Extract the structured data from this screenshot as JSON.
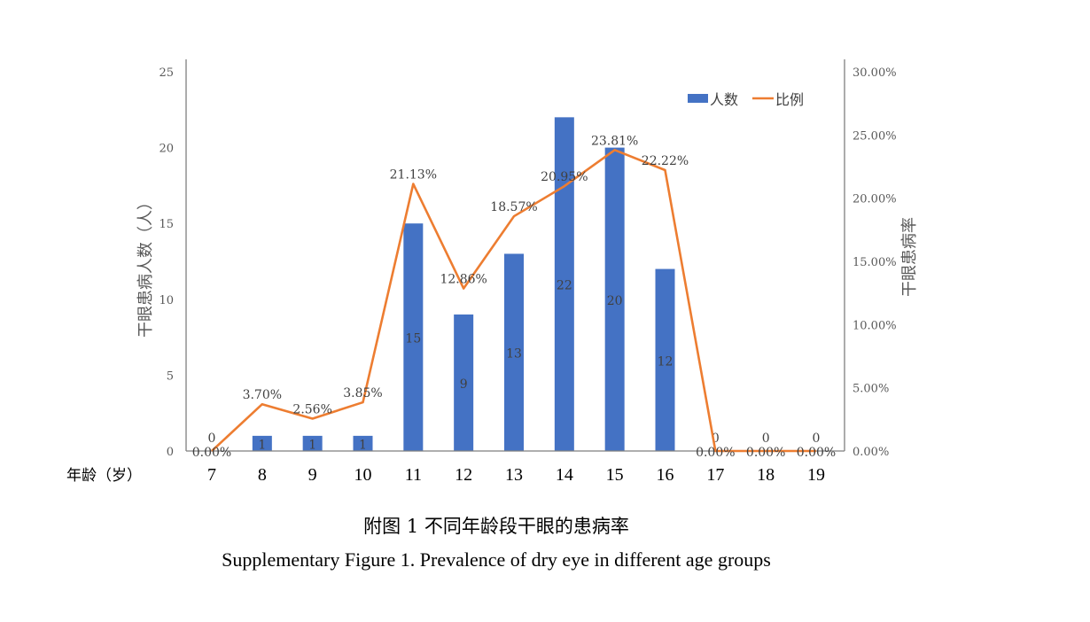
{
  "chart_data": {
    "type": "bar+line",
    "categories": [
      "7",
      "8",
      "9",
      "10",
      "11",
      "12",
      "13",
      "14",
      "15",
      "16",
      "17",
      "18",
      "19"
    ],
    "xlabel": "年龄（岁）",
    "ylabel": "干眼患病人数（人）",
    "y2label": "干眼患病率",
    "ylim": [
      0,
      25
    ],
    "y2lim": [
      0,
      30
    ],
    "yticks": [
      "0",
      "5",
      "10",
      "15",
      "20",
      "25"
    ],
    "y2ticks": [
      "0.00%",
      "5.00%",
      "10.00%",
      "15.00%",
      "20.00%",
      "25.00%",
      "30.00%"
    ],
    "grid": false,
    "legend": "top-right",
    "series": [
      {
        "name": "人数",
        "type": "bar",
        "color": "#4472C4",
        "axis": "left",
        "values": [
          0,
          1,
          1,
          1,
          15,
          9,
          13,
          22,
          20,
          12,
          0,
          0,
          0
        ],
        "labels": [
          "0",
          "1",
          "1",
          "1",
          "15",
          "9",
          "13",
          "22",
          "20",
          "12",
          "0",
          "0",
          "0"
        ]
      },
      {
        "name": "比例",
        "type": "line",
        "color": "#ED7D31",
        "axis": "right",
        "values": [
          0,
          3.7,
          2.56,
          3.85,
          21.13,
          12.86,
          18.57,
          20.95,
          23.81,
          22.22,
          0,
          0,
          0
        ],
        "labels": [
          "0.00%",
          "3.70%",
          "2.56%",
          "3.85%",
          "21.13%",
          "12.86%",
          "18.57%",
          "20.95%",
          "23.81%",
          "22.22%",
          "0.00%",
          "0.00%",
          "0.00%"
        ]
      }
    ]
  },
  "caption": {
    "zh": "附图 1 不同年龄段干眼的患病率",
    "en": "Supplementary Figure 1. Prevalence of dry eye in different age groups"
  }
}
